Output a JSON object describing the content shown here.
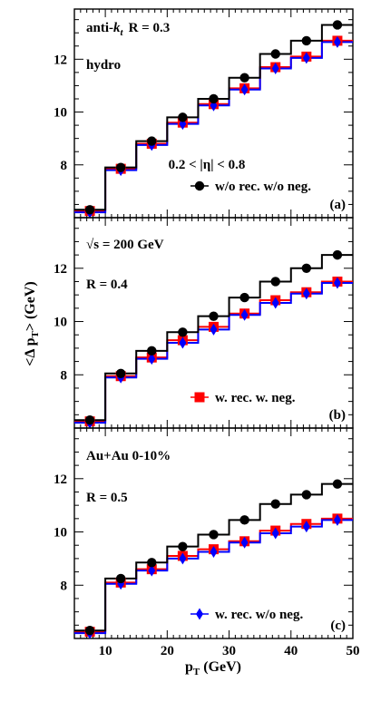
{
  "chart_data": {
    "type": "line",
    "xlabel": "p_T (GeV)",
    "ylabel": "<Δ p_T> (GeV)",
    "xlim": [
      5,
      50
    ],
    "x_ticks": [
      10,
      20,
      30,
      40,
      50
    ],
    "bin_edges": [
      5,
      10,
      15,
      20,
      25,
      30,
      35,
      40,
      45,
      50
    ],
    "bin_centers": [
      7.5,
      12.5,
      17.5,
      22.5,
      27.5,
      32.5,
      37.5,
      42.5,
      47.5
    ],
    "legend": {
      "black": "w/o rec. w/o neg.",
      "red": "w. rec. w. neg.",
      "blue": "w. rec. w/o neg."
    },
    "colors": {
      "black": "#000000",
      "red": "#ff0000",
      "blue": "#0000ff"
    },
    "panels": [
      {
        "id": "a",
        "panel_label": "(a)",
        "ylim": [
          6.0,
          13.9
        ],
        "y_ticks": [
          8,
          10,
          12
        ],
        "texts": [
          "anti-k_t  R = 0.3",
          "hydro",
          "0.2 < |η| < 0.8"
        ],
        "series": [
          {
            "name": "w/o rec. w/o neg.",
            "color": "black",
            "marker": "circle",
            "values": [
              6.3,
              7.9,
              8.9,
              9.8,
              10.5,
              11.3,
              12.2,
              12.7,
              13.3
            ]
          },
          {
            "name": "w. rec. w. neg.",
            "color": "red",
            "marker": "square",
            "values": [
              6.25,
              7.85,
              8.8,
              9.6,
              10.3,
              10.9,
              11.7,
              12.1,
              12.7
            ]
          },
          {
            "name": "w. rec. w/o neg.",
            "color": "blue",
            "marker": "diamond",
            "values": [
              6.2,
              7.8,
              8.75,
              9.55,
              10.25,
              10.85,
              11.65,
              12.05,
              12.65
            ]
          }
        ]
      },
      {
        "id": "b",
        "panel_label": "(b)",
        "ylim": [
          6.0,
          13.9
        ],
        "y_ticks": [
          8,
          10,
          12
        ],
        "texts": [
          "√s = 200 GeV",
          "R = 0.4"
        ],
        "series": [
          {
            "name": "w/o rec. w/o neg.",
            "color": "black",
            "marker": "circle",
            "values": [
              6.3,
              8.05,
              8.9,
              9.6,
              10.2,
              10.9,
              11.5,
              12.0,
              12.5
            ]
          },
          {
            "name": "w. rec. w. neg.",
            "color": "red",
            "marker": "square",
            "values": [
              6.25,
              7.95,
              8.65,
              9.3,
              9.8,
              10.3,
              10.8,
              11.1,
              11.5
            ]
          },
          {
            "name": "w. rec. w/o neg.",
            "color": "blue",
            "marker": "diamond",
            "values": [
              6.2,
              7.9,
              8.6,
              9.2,
              9.7,
              10.25,
              10.7,
              11.05,
              11.45
            ]
          }
        ]
      },
      {
        "id": "c",
        "panel_label": "(c)",
        "ylim": [
          6.0,
          13.9
        ],
        "y_ticks": [
          8,
          10,
          12
        ],
        "texts": [
          "Au+Au 0-10%",
          "R = 0.5"
        ],
        "series": [
          {
            "name": "w/o rec. w/o neg.",
            "color": "black",
            "marker": "circle",
            "values": [
              6.3,
              8.25,
              8.85,
              9.45,
              9.9,
              10.45,
              11.05,
              11.4,
              11.8
            ]
          },
          {
            "name": "w. rec. w. neg.",
            "color": "red",
            "marker": "square",
            "values": [
              6.25,
              8.1,
              8.6,
              9.1,
              9.35,
              9.65,
              10.05,
              10.3,
              10.5
            ]
          },
          {
            "name": "w. rec. w/o neg.",
            "color": "blue",
            "marker": "diamond",
            "values": [
              6.2,
              8.05,
              8.55,
              9.0,
              9.25,
              9.6,
              9.95,
              10.2,
              10.45
            ]
          }
        ]
      }
    ]
  }
}
